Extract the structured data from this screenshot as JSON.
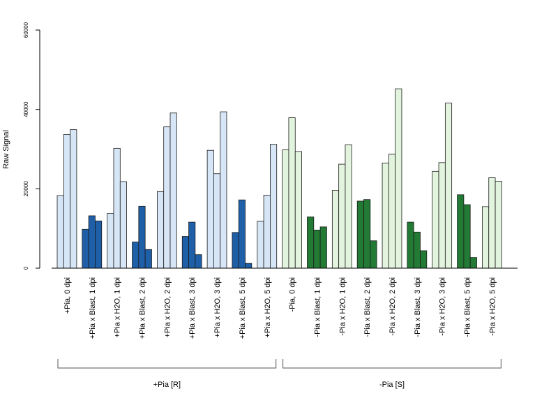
{
  "chart_data": {
    "type": "bar",
    "ylabel": "Raw Signal",
    "ylim": [
      0,
      60000
    ],
    "yticks": [
      0,
      20000,
      40000,
      60000
    ],
    "grid": false,
    "categories": [
      "+Pia, 0 dpi",
      "+Pia x Blast, 1 dpi",
      "+Pia x H2O, 1 dpi",
      "+Pia x Blast, 2 dpi",
      "+Pia x H2O, 2 dpi",
      "+Pia x Blast, 3 dpi",
      "+Pia x H2O, 3 dpi",
      "+Pia x Blast, 5 dpi",
      "+Pia x H2O, 5 dpi",
      "-Pia, 0 dpi",
      "-Pia x Blast, 1 dpi",
      "-Pia x H2O, 1 dpi",
      "-Pia x Blast, 2 dpi",
      "-Pia x H2O, 2 dpi",
      "-Pia x Blast, 3 dpi",
      "-Pia x H2O, 3 dpi",
      "-Pia x Blast, 5 dpi",
      "-Pia x H2O, 5 dpi"
    ],
    "replicates": [
      [
        18300,
        33700,
        34900
      ],
      [
        9800,
        13200,
        11900
      ],
      [
        13800,
        30200,
        21800
      ],
      [
        6600,
        15600,
        4700
      ],
      [
        19300,
        35600,
        39100
      ],
      [
        8000,
        11600,
        3400
      ],
      [
        29700,
        23800,
        39400
      ],
      [
        9000,
        17200,
        1200
      ],
      [
        11800,
        18400,
        31200
      ],
      [
        29800,
        37900,
        29400
      ],
      [
        12900,
        9600,
        10400
      ],
      [
        19600,
        26200,
        31100
      ],
      [
        16900,
        17300,
        6900
      ],
      [
        26500,
        28700,
        45200
      ],
      [
        11600,
        9100,
        4400
      ],
      [
        24400,
        26600,
        41600
      ],
      [
        18500,
        16000,
        2700
      ],
      [
        15500,
        22800,
        21900
      ]
    ],
    "bar_colors": [
      "#d7e6f6",
      "#1f5fa8",
      "#d7e6f6",
      "#1f5fa8",
      "#d7e6f6",
      "#1f5fa8",
      "#d7e6f6",
      "#1f5fa8",
      "#d7e6f6",
      "#e3f4de",
      "#237a34",
      "#e3f4de",
      "#237a34",
      "#e3f4de",
      "#237a34",
      "#e3f4de",
      "#237a34",
      "#e3f4de"
    ],
    "groups": [
      {
        "label": "+Pia [R]",
        "from": 0,
        "to": 8
      },
      {
        "label": "-Pia [S]",
        "from": 9,
        "to": 17
      }
    ]
  }
}
